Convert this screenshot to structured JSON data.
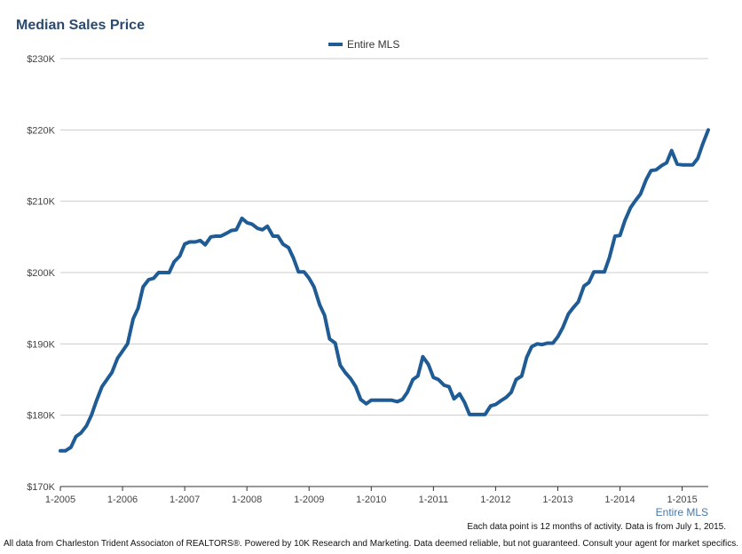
{
  "chart_data": {
    "type": "line",
    "title": "Median Sales Price",
    "xlabel": "Entire MLS",
    "ylabel": "",
    "ylim": [
      170000,
      230000
    ],
    "yticks": [
      {
        "value": 170000,
        "label": "$170K"
      },
      {
        "value": 180000,
        "label": "$180K"
      },
      {
        "value": 190000,
        "label": "$190K"
      },
      {
        "value": 200000,
        "label": "$200K"
      },
      {
        "value": 210000,
        "label": "$210K"
      },
      {
        "value": 220000,
        "label": "$220K"
      },
      {
        "value": 230000,
        "label": "$230K"
      }
    ],
    "xticks": [
      {
        "value": 2005,
        "label": "1-2005"
      },
      {
        "value": 2006,
        "label": "1-2006"
      },
      {
        "value": 2007,
        "label": "1-2007"
      },
      {
        "value": 2008,
        "label": "1-2008"
      },
      {
        "value": 2009,
        "label": "1-2009"
      },
      {
        "value": 2010,
        "label": "1-2010"
      },
      {
        "value": 2011,
        "label": "1-2011"
      },
      {
        "value": 2012,
        "label": "1-2012"
      },
      {
        "value": 2013,
        "label": "1-2013"
      },
      {
        "value": 2014,
        "label": "1-2014"
      },
      {
        "value": 2015,
        "label": "1-2015"
      }
    ],
    "xlim": [
      2005,
      2015.42
    ],
    "grid": true,
    "legend": "top-center",
    "series": [
      {
        "name": "Entire MLS",
        "color": "#1f5b94",
        "points": [
          [
            2005.0,
            175000
          ],
          [
            2005.08,
            175000
          ],
          [
            2005.17,
            175500
          ],
          [
            2005.25,
            177000
          ],
          [
            2005.33,
            177500
          ],
          [
            2005.42,
            178500
          ],
          [
            2005.5,
            180000
          ],
          [
            2005.58,
            182000
          ],
          [
            2005.67,
            184000
          ],
          [
            2005.75,
            185000
          ],
          [
            2005.83,
            186000
          ],
          [
            2005.92,
            188000
          ],
          [
            2006.0,
            189000
          ],
          [
            2006.08,
            190000
          ],
          [
            2006.17,
            193500
          ],
          [
            2006.25,
            195000
          ],
          [
            2006.33,
            198000
          ],
          [
            2006.42,
            199000
          ],
          [
            2006.5,
            199200
          ],
          [
            2006.58,
            200000
          ],
          [
            2006.67,
            200000
          ],
          [
            2006.75,
            200000
          ],
          [
            2006.83,
            201500
          ],
          [
            2006.92,
            202300
          ],
          [
            2007.0,
            204000
          ],
          [
            2007.08,
            204300
          ],
          [
            2007.17,
            204300
          ],
          [
            2007.25,
            204500
          ],
          [
            2007.33,
            203900
          ],
          [
            2007.42,
            205000
          ],
          [
            2007.5,
            205100
          ],
          [
            2007.58,
            205100
          ],
          [
            2007.67,
            205500
          ],
          [
            2007.75,
            205900
          ],
          [
            2007.83,
            206000
          ],
          [
            2007.92,
            207600
          ],
          [
            2008.0,
            207000
          ],
          [
            2008.08,
            206800
          ],
          [
            2008.17,
            206200
          ],
          [
            2008.25,
            206000
          ],
          [
            2008.33,
            206500
          ],
          [
            2008.42,
            205100
          ],
          [
            2008.5,
            205100
          ],
          [
            2008.58,
            204000
          ],
          [
            2008.67,
            203500
          ],
          [
            2008.75,
            202000
          ],
          [
            2008.83,
            200100
          ],
          [
            2008.92,
            200100
          ],
          [
            2009.0,
            199200
          ],
          [
            2009.08,
            198000
          ],
          [
            2009.17,
            195500
          ],
          [
            2009.25,
            194000
          ],
          [
            2009.33,
            190700
          ],
          [
            2009.42,
            190100
          ],
          [
            2009.5,
            187000
          ],
          [
            2009.58,
            186000
          ],
          [
            2009.67,
            185100
          ],
          [
            2009.75,
            184000
          ],
          [
            2009.83,
            182200
          ],
          [
            2009.92,
            181600
          ],
          [
            2010.0,
            182100
          ],
          [
            2010.08,
            182100
          ],
          [
            2010.17,
            182100
          ],
          [
            2010.25,
            182100
          ],
          [
            2010.33,
            182100
          ],
          [
            2010.42,
            181900
          ],
          [
            2010.5,
            182200
          ],
          [
            2010.58,
            183200
          ],
          [
            2010.67,
            185000
          ],
          [
            2010.75,
            185500
          ],
          [
            2010.83,
            188200
          ],
          [
            2010.92,
            187100
          ],
          [
            2011.0,
            185300
          ],
          [
            2011.08,
            185000
          ],
          [
            2011.17,
            184200
          ],
          [
            2011.25,
            184000
          ],
          [
            2011.33,
            182300
          ],
          [
            2011.42,
            183000
          ],
          [
            2011.5,
            181800
          ],
          [
            2011.58,
            180100
          ],
          [
            2011.67,
            180100
          ],
          [
            2011.75,
            180100
          ],
          [
            2011.83,
            180100
          ],
          [
            2011.92,
            181300
          ],
          [
            2012.0,
            181500
          ],
          [
            2012.08,
            182000
          ],
          [
            2012.17,
            182500
          ],
          [
            2012.25,
            183200
          ],
          [
            2012.33,
            185000
          ],
          [
            2012.42,
            185500
          ],
          [
            2012.5,
            188100
          ],
          [
            2012.58,
            189600
          ],
          [
            2012.67,
            190000
          ],
          [
            2012.75,
            189900
          ],
          [
            2012.83,
            190100
          ],
          [
            2012.92,
            190100
          ],
          [
            2013.0,
            191000
          ],
          [
            2013.08,
            192300
          ],
          [
            2013.17,
            194200
          ],
          [
            2013.25,
            195100
          ],
          [
            2013.33,
            195900
          ],
          [
            2013.42,
            198100
          ],
          [
            2013.5,
            198600
          ],
          [
            2013.58,
            200100
          ],
          [
            2013.67,
            200100
          ],
          [
            2013.75,
            200100
          ],
          [
            2013.83,
            202100
          ],
          [
            2013.92,
            205100
          ],
          [
            2014.0,
            205200
          ],
          [
            2014.08,
            207300
          ],
          [
            2014.17,
            209100
          ],
          [
            2014.25,
            210100
          ],
          [
            2014.33,
            211000
          ],
          [
            2014.42,
            213000
          ],
          [
            2014.5,
            214300
          ],
          [
            2014.58,
            214400
          ],
          [
            2014.67,
            215000
          ],
          [
            2014.75,
            215400
          ],
          [
            2014.83,
            217100
          ],
          [
            2014.92,
            215200
          ],
          [
            2015.0,
            215100
          ],
          [
            2015.08,
            215100
          ],
          [
            2015.17,
            215100
          ],
          [
            2015.25,
            216000
          ],
          [
            2015.33,
            218000
          ],
          [
            2015.42,
            220000
          ]
        ]
      }
    ],
    "note": "Each data point is 12 months of activity. Data is from July 1, 2015."
  },
  "footer": "All data from Charleston Trident Associaton of REALTORS®. Powered by 10K Research and Marketing. Data deemed reliable, but not guaranteed. Consult your agent for market specifics."
}
